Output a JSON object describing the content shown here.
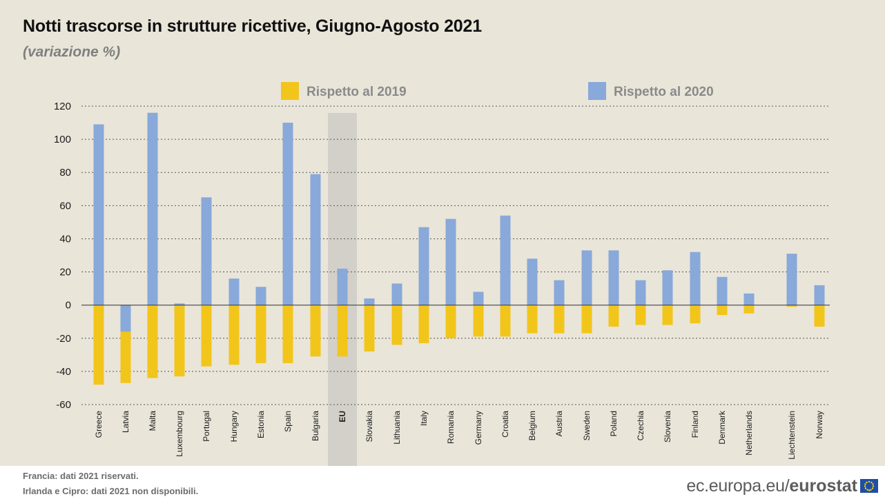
{
  "title": "Notti trascorse in strutture ricettive, Giugno-Agosto 2021",
  "subtitle": "(variazione %)",
  "notes": {
    "line1": "Francia: dati 2021 riservati.",
    "line2": "Irlanda e Cipro: dati 2021 non disponibili."
  },
  "logo": {
    "plain": "ec.europa.eu/",
    "bold": "eurostat",
    "icon": "eu-flag-icon"
  },
  "colors": {
    "vs2019": "#f2c51b",
    "vs2020": "#88a9d9",
    "highlight": "#d3d0c9",
    "panel": "#e9e5d9"
  },
  "chart_data": {
    "type": "bar",
    "categories": [
      "Greece",
      "Latvia",
      "Malta",
      "Luxembourg",
      "Portugal",
      "Hungary",
      "Estonia",
      "Spain",
      "Bulgaria",
      "EU",
      "Slovakia",
      "Lithuania",
      "Italy",
      "Romania",
      "Germany",
      "Croatia",
      "Belgium",
      "Austria",
      "Sweden",
      "Poland",
      "Czechia",
      "Slovenia",
      "Finland",
      "Denmark",
      "Netherlands",
      "Liechtenstein",
      "Norway"
    ],
    "highlight_category": "EU",
    "series": [
      {
        "name": "Rispetto al 2019",
        "color": "#f2c51b",
        "values": [
          -48,
          -47,
          -44,
          -43,
          -37,
          -36,
          -35,
          -35,
          -31,
          -31,
          -28,
          -24,
          -23,
          -20,
          -19,
          -19,
          -17,
          -17,
          -17,
          -13,
          -12,
          -12,
          -11,
          -6,
          -5,
          -1,
          -13
        ]
      },
      {
        "name": "Rispetto al 2020",
        "color": "#88a9d9",
        "values": [
          109,
          -16,
          116,
          1,
          65,
          16,
          11,
          110,
          79,
          22,
          4,
          13,
          47,
          52,
          8,
          54,
          28,
          15,
          33,
          33,
          15,
          21,
          32,
          17,
          7,
          31,
          12
        ]
      }
    ],
    "ylim": [
      -60,
      120
    ],
    "yticks": [
      -60,
      -40,
      -20,
      0,
      20,
      40,
      60,
      80,
      100,
      120
    ],
    "grid": "dotted horizontal",
    "legend": "top-center"
  }
}
